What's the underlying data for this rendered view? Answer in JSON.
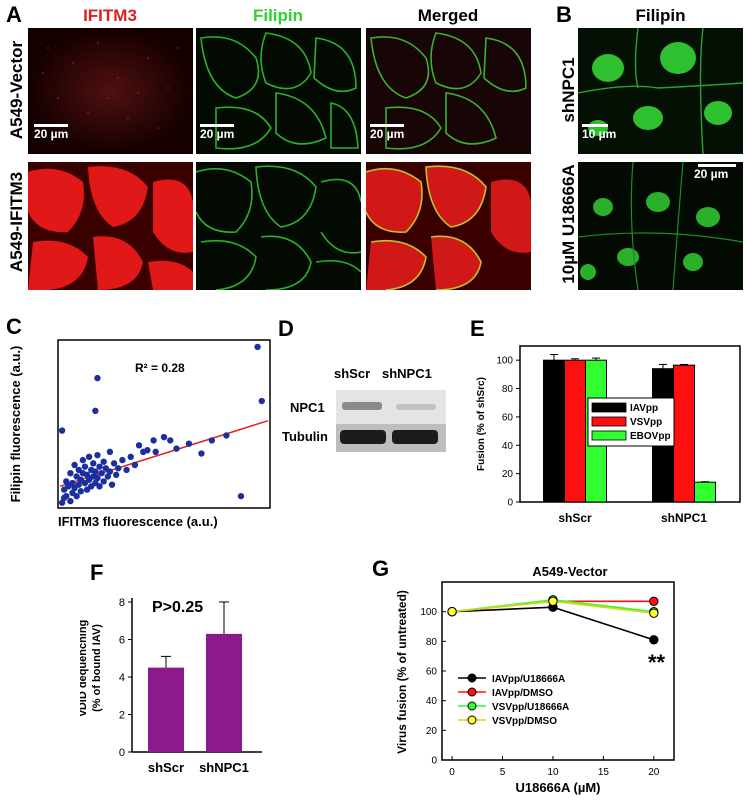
{
  "panels": {
    "A": "A",
    "B": "B",
    "C": "C",
    "D": "D",
    "E": "E",
    "F": "F",
    "G": "G"
  },
  "panelA": {
    "columns": [
      "IFITM3",
      "Filipin",
      "Merged"
    ],
    "column_colors": [
      "#e02020",
      "#30d030",
      "#000000"
    ],
    "rows": [
      "A549-Vector",
      "A549-IFITM3"
    ],
    "scale_labels": [
      "20 µm",
      "20 µm",
      "20 µm"
    ]
  },
  "panelB": {
    "title": "Filipin",
    "title_color": "#30d030",
    "rows": [
      "shNPC1",
      "10µM U18666A"
    ],
    "scale_labels": [
      "10 µm",
      "20 µm"
    ]
  },
  "panelD": {
    "lanes": [
      "shScr",
      "shNPC1"
    ],
    "bands": [
      "NPC1",
      "Tubulin"
    ]
  },
  "chart_data": [
    {
      "id": "C",
      "type": "scatter",
      "xlabel": "IFITM3 fluorescence (a.u.)",
      "ylabel": "Filipin fluorescence (a.u.)",
      "annotation": "R² = 0.28",
      "xlim": [
        0,
        1
      ],
      "ylim": [
        0,
        1
      ],
      "point_color": "#1c2fa0",
      "fit_color": "#e02020",
      "fit_line": {
        "x": [
          0,
          1
        ],
        "y": [
          0.12,
          0.52
        ]
      },
      "points": [
        [
          0.01,
          0.02
        ],
        [
          0.02,
          0.05
        ],
        [
          0.02,
          0.1
        ],
        [
          0.03,
          0.15
        ],
        [
          0.03,
          0.06
        ],
        [
          0.04,
          0.12
        ],
        [
          0.05,
          0.03
        ],
        [
          0.05,
          0.2
        ],
        [
          0.06,
          0.08
        ],
        [
          0.06,
          0.14
        ],
        [
          0.07,
          0.25
        ],
        [
          0.07,
          0.11
        ],
        [
          0.08,
          0.18
        ],
        [
          0.08,
          0.06
        ],
        [
          0.09,
          0.22
        ],
        [
          0.09,
          0.13
        ],
        [
          0.1,
          0.16
        ],
        [
          0.1,
          0.09
        ],
        [
          0.11,
          0.28
        ],
        [
          0.11,
          0.2
        ],
        [
          0.12,
          0.14
        ],
        [
          0.12,
          0.24
        ],
        [
          0.13,
          0.1
        ],
        [
          0.13,
          0.19
        ],
        [
          0.14,
          0.3
        ],
        [
          0.14,
          0.16
        ],
        [
          0.15,
          0.22
        ],
        [
          0.15,
          0.12
        ],
        [
          0.16,
          0.26
        ],
        [
          0.16,
          0.18
        ],
        [
          0.17,
          0.14
        ],
        [
          0.17,
          0.21
        ],
        [
          0.18,
          0.31
        ],
        [
          0.18,
          0.17
        ],
        [
          0.19,
          0.24
        ],
        [
          0.19,
          0.12
        ],
        [
          0.2,
          0.2
        ],
        [
          0.21,
          0.27
        ],
        [
          0.21,
          0.15
        ],
        [
          0.22,
          0.23
        ],
        [
          0.23,
          0.18
        ],
        [
          0.24,
          0.33
        ],
        [
          0.24,
          0.21
        ],
        [
          0.25,
          0.13
        ],
        [
          0.26,
          0.26
        ],
        [
          0.27,
          0.19
        ],
        [
          0.28,
          0.23
        ],
        [
          0.3,
          0.28
        ],
        [
          0.32,
          0.22
        ],
        [
          0.34,
          0.3
        ],
        [
          0.36,
          0.25
        ],
        [
          0.38,
          0.37
        ],
        [
          0.4,
          0.33
        ],
        [
          0.42,
          0.34
        ],
        [
          0.45,
          0.4
        ],
        [
          0.46,
          0.33
        ],
        [
          0.5,
          0.42
        ],
        [
          0.53,
          0.4
        ],
        [
          0.56,
          0.35
        ],
        [
          0.62,
          0.38
        ],
        [
          0.68,
          0.32
        ],
        [
          0.73,
          0.4
        ],
        [
          0.8,
          0.43
        ],
        [
          0.87,
          0.06
        ],
        [
          0.17,
          0.58
        ],
        [
          0.18,
          0.78
        ],
        [
          0.01,
          0.46
        ],
        [
          0.95,
          0.97
        ],
        [
          0.97,
          0.64
        ]
      ]
    },
    {
      "id": "E",
      "type": "bar",
      "categories": [
        "shScr",
        "shNPC1"
      ],
      "ylabel": "Fusion (% of shSrc)",
      "ylim": [
        0,
        110
      ],
      "yticks": [
        0,
        20,
        40,
        60,
        80,
        100
      ],
      "series": [
        {
          "name": "IAVpp",
          "color": "#000000",
          "values": [
            100,
            94
          ],
          "errors": [
            4,
            3
          ]
        },
        {
          "name": "VSVpp",
          "color": "#ff1010",
          "values": [
            100,
            96.5
          ],
          "errors": [
            1,
            0.5
          ]
        },
        {
          "name": "EBOVpp",
          "color": "#30ff30",
          "values": [
            100,
            14
          ],
          "errors": [
            1.5,
            0.3
          ]
        }
      ]
    },
    {
      "id": "F",
      "type": "bar",
      "categories": [
        "shScr",
        "shNPC1"
      ],
      "ylabel": "vDiD dequenching",
      "ylabel2": "(% of bound IAV)",
      "annotation": "P>0.25",
      "ylim": [
        0,
        8
      ],
      "yticks": [
        0,
        2,
        4,
        6,
        8
      ],
      "bar_color": "#8c1a8c",
      "values": [
        4.5,
        6.3
      ],
      "errors": [
        0.6,
        1.7
      ]
    },
    {
      "id": "G",
      "type": "line",
      "title": "A549-Vector",
      "xlabel": "U18666A (µM)",
      "ylabel": "Virus fusion (% of untreated)",
      "xlim": [
        -1,
        22
      ],
      "ylim": [
        0,
        120
      ],
      "xticks": [
        0,
        5,
        10,
        15,
        20
      ],
      "yticks": [
        0,
        20,
        40,
        60,
        80,
        100
      ],
      "x": [
        0,
        10,
        20
      ],
      "annotation": "**",
      "series": [
        {
          "name": "IAVpp/U18666A",
          "color": "#000000",
          "values": [
            100,
            103,
            81
          ],
          "errors": [
            1,
            2,
            3
          ]
        },
        {
          "name": "IAVpp/DMSO",
          "color": "#ff1010",
          "values": [
            100,
            107,
            107
          ],
          "errors": [
            1,
            2,
            2
          ]
        },
        {
          "name": "VSVpp/U18666A",
          "color": "#30ff30",
          "values": [
            100,
            108,
            100
          ],
          "errors": [
            1,
            3,
            3
          ]
        },
        {
          "name": "VSVpp/DMSO",
          "color": "#ffff30",
          "values": [
            100,
            107,
            99
          ],
          "errors": [
            1,
            2,
            2
          ]
        }
      ]
    }
  ]
}
